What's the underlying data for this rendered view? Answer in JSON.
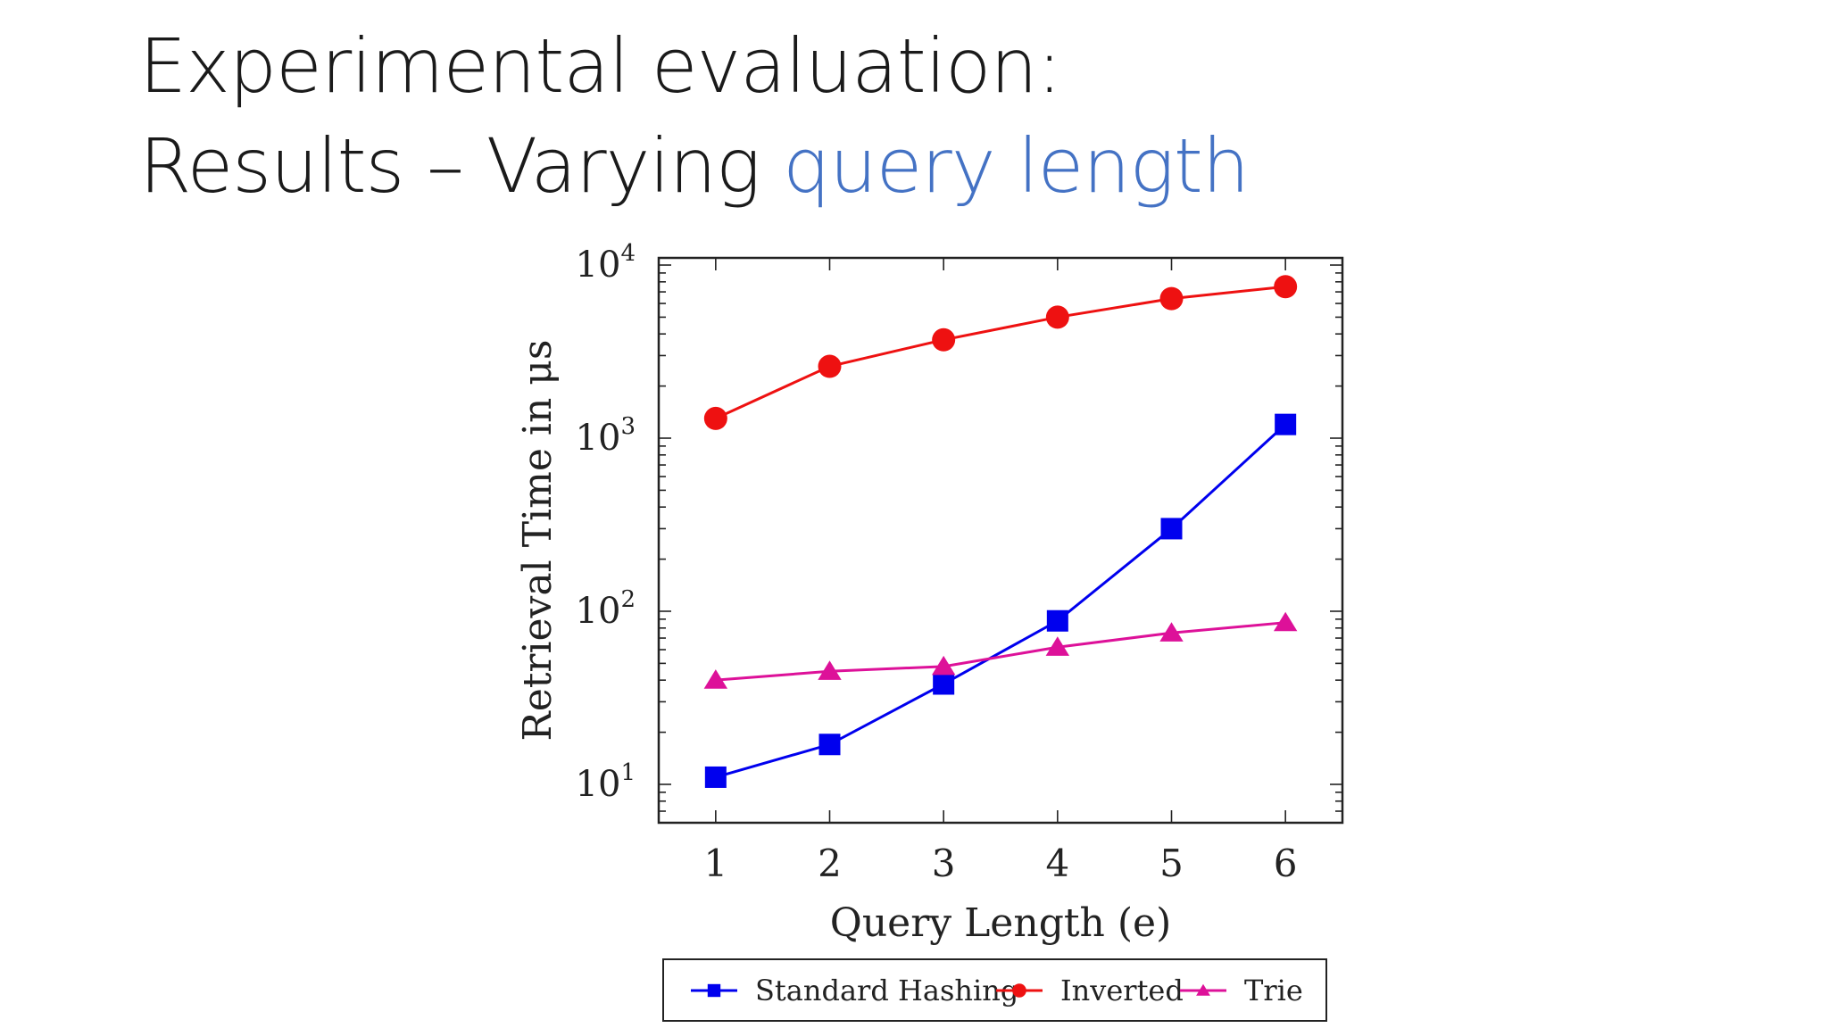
{
  "slide": {
    "title_line1": "Experimental evaluation:",
    "title_line2_prefix": "Results – Varying ",
    "title_line2_accent": "query length"
  },
  "colors": {
    "accent": "#4472c4",
    "standard_hashing": "#0000ee",
    "inverted": "#ee1111",
    "trie": "#dd1199"
  },
  "chart_data": {
    "type": "line",
    "x": [
      1,
      2,
      3,
      4,
      5,
      6
    ],
    "xlabel": "Query Length (e)",
    "ylabel": "Retrieval Time in μs",
    "yscale": "log",
    "xlim": [
      0.5,
      6.5
    ],
    "ylim": [
      6,
      11000
    ],
    "x_ticks": [
      "1",
      "2",
      "3",
      "4",
      "5",
      "6"
    ],
    "y_ticks": [
      {
        "base": "10",
        "exp": "1",
        "value": 10
      },
      {
        "base": "10",
        "exp": "2",
        "value": 100
      },
      {
        "base": "10",
        "exp": "3",
        "value": 1000
      },
      {
        "base": "10",
        "exp": "4",
        "value": 10000
      }
    ],
    "grid": false,
    "legend_position": "bottom",
    "series": [
      {
        "name": "Standard Hashing",
        "marker": "square",
        "values": [
          11,
          17,
          38,
          88,
          300,
          1200
        ]
      },
      {
        "name": "Inverted",
        "marker": "circle",
        "values": [
          1300,
          2600,
          3700,
          5000,
          6400,
          7500
        ]
      },
      {
        "name": "Trie",
        "marker": "triangle",
        "values": [
          40,
          45,
          48,
          62,
          75,
          86
        ]
      }
    ]
  }
}
